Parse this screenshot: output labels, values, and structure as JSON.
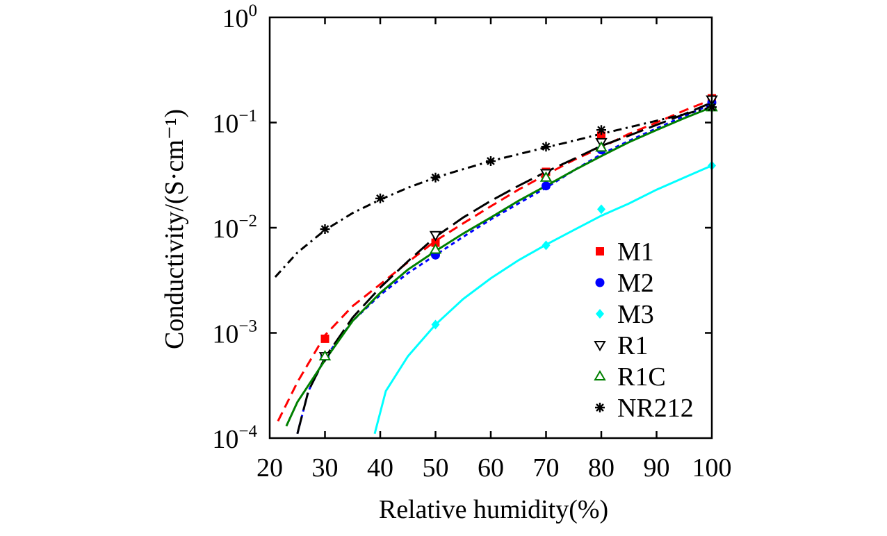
{
  "chart_data": {
    "type": "scatter",
    "xlabel": "Relative humidity(%)",
    "ylabel": "Conductivity/(S·cm⁻¹)",
    "xlim": [
      20,
      100
    ],
    "ylim": [
      0.0001,
      1
    ],
    "yscale": "log",
    "legend_position": "bottom-right",
    "x_ticks": [
      "20",
      "30",
      "40",
      "50",
      "60",
      "70",
      "80",
      "90",
      "100"
    ],
    "y_tick_bases": [
      "10",
      "10",
      "10",
      "10",
      "10"
    ],
    "y_tick_exponents": [
      "−4",
      "−3",
      "−2",
      "−1",
      "0"
    ],
    "y_tick_values": [
      0.0001,
      0.001,
      0.01,
      0.1,
      1
    ],
    "series": [
      {
        "name": "M1",
        "color": "#ff0000",
        "marker": "square",
        "line_style": "dashed",
        "x": [
          30,
          50,
          70,
          80,
          100
        ],
        "values": [
          0.00088,
          0.0072,
          0.034,
          0.075,
          0.17
        ],
        "fit_x": [
          21.5,
          25,
          30,
          35,
          40,
          45,
          50,
          55,
          60,
          65,
          70,
          75,
          80,
          85,
          90,
          95,
          100
        ],
        "fit_y": [
          0.000145,
          0.00034,
          0.00095,
          0.0018,
          0.0029,
          0.0047,
          0.0075,
          0.011,
          0.016,
          0.023,
          0.032,
          0.044,
          0.058,
          0.078,
          0.1,
          0.13,
          0.165
        ]
      },
      {
        "name": "M2",
        "color": "#0000ff",
        "marker": "circle",
        "line_style": "short-dashed",
        "x": [
          30,
          50,
          70,
          80,
          100
        ],
        "values": [
          0.0006,
          0.0055,
          0.025,
          0.055,
          0.155
        ],
        "fit_x": [
          25,
          27,
          30,
          35,
          40,
          45,
          50,
          55,
          60,
          65,
          70,
          75,
          80,
          85,
          90,
          95,
          100
        ],
        "fit_y": [
          0.00011,
          0.00028,
          0.00058,
          0.0013,
          0.0023,
          0.0037,
          0.0055,
          0.0082,
          0.012,
          0.017,
          0.024,
          0.035,
          0.05,
          0.067,
          0.088,
          0.115,
          0.15
        ]
      },
      {
        "name": "M3",
        "color": "#00ffff",
        "marker": "diamond",
        "line_style": "solid",
        "x": [
          50,
          70,
          80,
          100
        ],
        "values": [
          0.0012,
          0.0068,
          0.015,
          0.039
        ],
        "fit_x": [
          39,
          41,
          45,
          50,
          55,
          60,
          65,
          70,
          75,
          80,
          85,
          90,
          95,
          100
        ],
        "fit_y": [
          0.00011,
          0.00028,
          0.0006,
          0.0012,
          0.0021,
          0.0033,
          0.0049,
          0.0069,
          0.0095,
          0.013,
          0.017,
          0.023,
          0.03,
          0.039
        ]
      },
      {
        "name": "R1",
        "color": "#000000",
        "marker": "triangle-down",
        "line_style": "long-dashed",
        "x": [
          30,
          50,
          70,
          80,
          100
        ],
        "values": [
          0.0006,
          0.0085,
          0.033,
          0.065,
          0.165
        ],
        "fit_x": [
          25,
          27,
          30,
          35,
          40,
          45,
          50,
          55,
          60,
          65,
          70,
          75,
          80,
          85,
          90,
          95,
          100
        ],
        "fit_y": [
          0.00011,
          0.00028,
          0.00058,
          0.0014,
          0.0027,
          0.0048,
          0.0082,
          0.0125,
          0.018,
          0.025,
          0.034,
          0.045,
          0.06,
          0.075,
          0.095,
          0.12,
          0.155
        ]
      },
      {
        "name": "R1C",
        "color": "#008000",
        "marker": "triangle-up",
        "line_style": "solid",
        "x": [
          30,
          50,
          70,
          80,
          100
        ],
        "values": [
          0.0006,
          0.0062,
          0.03,
          0.058,
          0.14
        ],
        "fit_x": [
          23,
          25,
          30,
          35,
          40,
          45,
          50,
          55,
          60,
          65,
          70,
          75,
          80,
          85,
          90,
          95,
          100
        ],
        "fit_y": [
          0.00013,
          0.00022,
          0.00055,
          0.0013,
          0.0024,
          0.004,
          0.006,
          0.0088,
          0.0125,
          0.018,
          0.025,
          0.035,
          0.048,
          0.065,
          0.085,
          0.11,
          0.14
        ]
      },
      {
        "name": "NR212",
        "color": "#000000",
        "marker": "asterisk",
        "line_style": "dash-dot",
        "x": [
          30,
          40,
          50,
          60,
          70,
          80,
          100
        ],
        "values": [
          0.0097,
          0.019,
          0.03,
          0.043,
          0.059,
          0.085,
          0.14
        ],
        "fit_x": [
          21,
          25,
          30,
          35,
          40,
          45,
          50,
          55,
          60,
          65,
          70,
          75,
          80,
          85,
          90,
          95,
          100
        ],
        "fit_y": [
          0.0034,
          0.0058,
          0.0095,
          0.0138,
          0.0185,
          0.024,
          0.03,
          0.036,
          0.043,
          0.05,
          0.058,
          0.067,
          0.078,
          0.09,
          0.104,
          0.12,
          0.14
        ]
      }
    ]
  }
}
